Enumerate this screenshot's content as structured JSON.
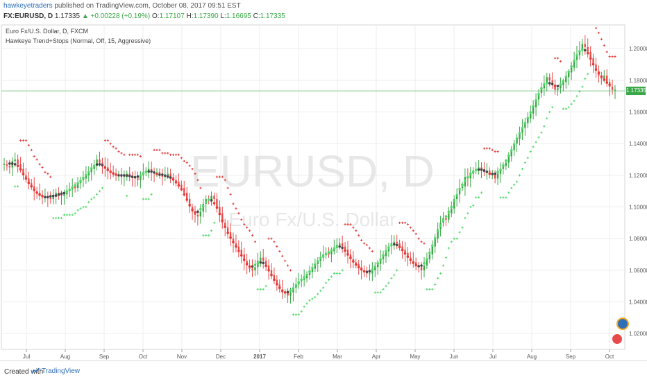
{
  "header": {
    "author": "hawkeyetraders",
    "published_text": "published on TradingView.com, October 08, 2017 09:51 EST",
    "symbol": "FX:EURUSD, D",
    "last": "1.17335",
    "change": "+0.00228 (+0.19%)",
    "o_label": "O:",
    "o_value": "1.17107",
    "h_label": "H:",
    "h_value": "1.17390",
    "l_label": "L:",
    "l_value": "1.16695",
    "c_label": "C:",
    "c_value": "1.17335"
  },
  "legend": {
    "series_name": "Euro Fx/U.S. Dollar, D, FXCM",
    "indicator": "Hawkeye Trend+Stops (Normal, Off, 15, Aggressive)"
  },
  "watermark": {
    "symbol": "EURUSD, D",
    "name": "Euro Fx/U.S. Dollar"
  },
  "price_tag": "1.17335",
  "footer": {
    "created_with": "Created with",
    "brand": "TradingView"
  },
  "colors": {
    "up_candle": "#3aa847",
    "down_candle": "#e84a4a",
    "trend_green": "#4cd964",
    "trend_red": "#e53935",
    "trend_neutral": "#444444",
    "grid": "#eeeeee",
    "price_line": "#3aa847"
  },
  "chart_data": {
    "type": "line",
    "y_range": [
      1.01,
      1.215
    ],
    "y_ticks": [
      "1.20000",
      "1.18000",
      "1.16000",
      "1.14000",
      "1.12000",
      "1.10000",
      "1.08000",
      "1.06000",
      "1.04000",
      "1.02000"
    ],
    "x_ticks": [
      "Jul",
      "Aug",
      "Sep",
      "Oct",
      "Nov",
      "Dec",
      "2017",
      "Feb",
      "Mar",
      "Apr",
      "May",
      "Jun",
      "Jul",
      "Aug",
      "Sep",
      "Oct"
    ],
    "last_price": 1.17335,
    "series": [
      {
        "values": [
          1.127,
          1.126,
          1.125,
          1.129,
          1.13,
          1.127,
          1.124,
          1.12,
          1.118,
          1.115,
          1.113,
          1.11,
          1.109,
          1.107,
          1.106,
          1.107,
          1.106,
          1.105,
          1.107,
          1.109,
          1.108,
          1.107,
          1.108,
          1.11,
          1.111,
          1.113,
          1.112,
          1.115,
          1.117,
          1.118,
          1.12,
          1.122,
          1.124,
          1.126,
          1.13,
          1.128,
          1.126,
          1.125,
          1.123,
          1.122,
          1.121,
          1.12,
          1.12,
          1.119,
          1.12,
          1.121,
          1.12,
          1.119,
          1.118,
          1.117,
          1.12,
          1.122,
          1.123,
          1.124,
          1.122,
          1.121,
          1.122,
          1.12,
          1.119,
          1.12,
          1.121,
          1.119,
          1.117,
          1.116,
          1.114,
          1.112,
          1.109,
          1.105,
          1.1,
          1.097,
          1.095,
          1.094,
          1.097,
          1.102,
          1.105,
          1.104,
          1.107,
          1.105,
          1.1,
          1.096,
          1.09,
          1.087,
          1.084,
          1.08,
          1.077,
          1.075,
          1.073,
          1.07,
          1.066,
          1.063,
          1.061,
          1.06,
          1.062,
          1.066,
          1.068,
          1.066,
          1.063,
          1.06,
          1.057,
          1.054,
          1.051,
          1.048,
          1.046,
          1.046,
          1.044,
          1.046,
          1.049,
          1.051,
          1.053,
          1.054,
          1.055,
          1.057,
          1.059,
          1.061,
          1.064,
          1.066,
          1.068,
          1.07,
          1.071,
          1.07,
          1.072,
          1.074,
          1.076,
          1.077,
          1.075,
          1.073,
          1.07,
          1.067,
          1.065,
          1.064,
          1.062,
          1.06,
          1.059,
          1.058,
          1.058,
          1.06,
          1.062,
          1.064,
          1.067,
          1.069,
          1.072,
          1.075,
          1.077,
          1.078,
          1.077,
          1.075,
          1.073,
          1.071,
          1.068,
          1.066,
          1.065,
          1.063,
          1.062,
          1.06,
          1.063,
          1.067,
          1.07,
          1.075,
          1.08,
          1.086,
          1.09,
          1.093,
          1.092,
          1.096,
          1.099,
          1.105,
          1.108,
          1.112,
          1.113,
          1.119,
          1.118,
          1.121,
          1.123,
          1.124,
          1.125,
          1.124,
          1.122,
          1.123,
          1.121,
          1.121,
          1.118,
          1.121,
          1.124,
          1.126,
          1.128,
          1.132,
          1.136,
          1.14,
          1.143,
          1.147,
          1.15,
          1.153,
          1.156,
          1.159,
          1.163,
          1.168,
          1.172,
          1.175,
          1.178,
          1.182,
          1.18,
          1.177,
          1.174,
          1.175,
          1.177,
          1.179,
          1.182,
          1.185,
          1.188,
          1.193,
          1.196,
          1.199,
          1.203,
          1.201,
          1.198,
          1.194,
          1.19,
          1.186,
          1.183,
          1.181,
          1.183,
          1.179,
          1.176,
          1.174,
          1.174
        ]
      }
    ]
  }
}
